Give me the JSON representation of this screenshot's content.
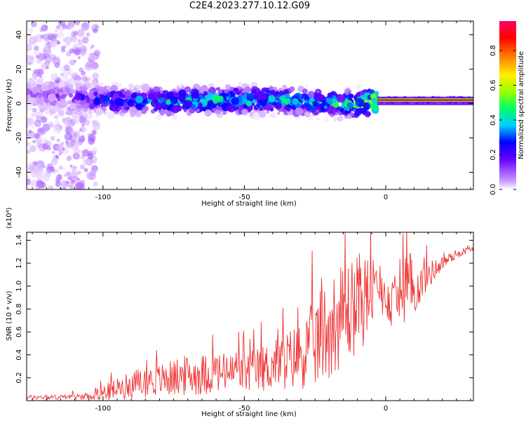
{
  "title": "C2E4.2023.277.10.12.G09",
  "chart_data": [
    {
      "type": "heatmap",
      "xlabel": "Height of straight line (km)",
      "ylabel": "Frequency (Hz)",
      "xlim": [
        -127,
        31
      ],
      "ylim": [
        -50,
        48
      ],
      "xticks": [
        -100,
        -50,
        0
      ],
      "yticks": [
        -40,
        -20,
        0,
        20,
        40
      ],
      "colorbar": {
        "label": "Normalized spectral amplitude",
        "ticks": [
          0.0,
          0.2,
          0.4,
          0.6,
          0.8
        ],
        "range": [
          0,
          0.97
        ],
        "colormap": [
          "#ffffff",
          "#cc99ff",
          "#6600ff",
          "#0000ff",
          "#00ccff",
          "#00ff66",
          "#99ff00",
          "#ffee00",
          "#ff8800",
          "#ff0000",
          "#ff0066"
        ]
      },
      "description_series": [
        {
          "name": "",
          "x": [
            -127,
            -110,
            -100,
            -80,
            -60,
            -40,
            -20,
            -10,
            -3,
            0,
            10,
            20,
            31
          ],
          "center_frequency": [
            6,
            4,
            2,
            1,
            2,
            2,
            0,
            -1,
            2,
            2,
            2,
            2,
            2
          ],
          "peak_amplitude": [
            0.15,
            0.2,
            0.35,
            0.45,
            0.5,
            0.5,
            0.5,
            0.55,
            0.9,
            0.9,
            0.9,
            0.9,
            0.9
          ]
        }
      ]
    },
    {
      "type": "line",
      "xlabel": "Height of straight line (km)",
      "ylabel": "SNR (10 * v/v)",
      "y_multiplier": "(x10⁴)",
      "xlim": [
        -127,
        31
      ],
      "ylim": [
        0,
        1.47
      ],
      "xticks": [
        -100,
        -50,
        0
      ],
      "yticks": [
        0.2,
        0.4,
        0.6,
        0.8,
        1.0,
        1.2,
        1.4
      ],
      "color": "#ee3333",
      "series": [
        {
          "name": "",
          "x": [
            -127,
            -115,
            -105,
            -98,
            -90,
            -80,
            -70,
            -60,
            -50,
            -40,
            -30,
            -25,
            -20,
            -15,
            -10,
            -7,
            -5,
            0,
            3,
            5,
            8,
            10,
            15,
            20,
            25,
            31
          ],
          "y": [
            0.03,
            0.03,
            0.04,
            0.08,
            0.14,
            0.18,
            0.22,
            0.24,
            0.24,
            0.3,
            0.4,
            0.5,
            0.65,
            0.75,
            0.85,
            0.9,
            0.95,
            0.9,
            0.85,
            1.0,
            0.95,
            0.95,
            1.1,
            1.2,
            1.28,
            1.33
          ],
          "spread": [
            0.02,
            0.02,
            0.03,
            0.08,
            0.12,
            0.14,
            0.18,
            0.18,
            0.18,
            0.22,
            0.3,
            0.4,
            0.45,
            0.45,
            0.45,
            0.4,
            0.3,
            0.15,
            0.3,
            0.25,
            0.45,
            0.2,
            0.12,
            0.06,
            0.04,
            0.02
          ]
        }
      ]
    }
  ]
}
